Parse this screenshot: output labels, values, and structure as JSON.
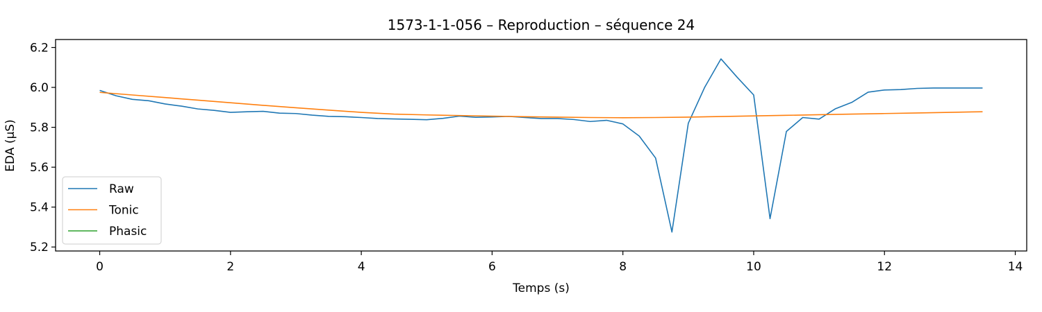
{
  "chart_data": {
    "type": "line",
    "title": "1573-1-1-056 – Reproduction – séquence 24",
    "xlabel": "Temps (s)",
    "ylabel": "EDA (µS)",
    "xlim": [
      -0.675,
      14.175
    ],
    "ylim": [
      5.18,
      6.24
    ],
    "xticks": [
      0,
      2,
      4,
      6,
      8,
      10,
      12,
      14
    ],
    "xtick_labels": [
      "0",
      "2",
      "4",
      "6",
      "8",
      "10",
      "12",
      "14"
    ],
    "yticks": [
      5.2,
      5.4,
      5.6,
      5.8,
      6.0,
      6.2
    ],
    "ytick_labels": [
      "5.2",
      "5.4",
      "5.6",
      "5.8",
      "6.0",
      "6.2"
    ],
    "grid": false,
    "legend_position": "lower-left",
    "series": [
      {
        "name": "Raw",
        "color": "#1f77b4",
        "x": [
          0,
          0.25,
          0.5,
          0.75,
          1.0,
          1.25,
          1.5,
          1.75,
          2.0,
          2.25,
          2.5,
          2.75,
          3.0,
          3.25,
          3.5,
          3.75,
          4.0,
          4.25,
          4.5,
          4.75,
          5.0,
          5.25,
          5.5,
          5.75,
          6.0,
          6.25,
          6.5,
          6.75,
          7.0,
          7.25,
          7.5,
          7.75,
          8.0,
          8.25,
          8.5,
          8.75,
          9.0,
          9.25,
          9.5,
          9.75,
          10.0,
          10.25,
          10.5,
          10.75,
          11.0,
          11.25,
          11.5,
          11.75,
          12.0,
          12.25,
          12.5,
          12.75,
          13.0,
          13.25,
          13.5
        ],
        "y": [
          5.985,
          5.958,
          5.94,
          5.933,
          5.917,
          5.906,
          5.892,
          5.885,
          5.875,
          5.878,
          5.88,
          5.871,
          5.869,
          5.861,
          5.855,
          5.853,
          5.849,
          5.844,
          5.842,
          5.84,
          5.838,
          5.845,
          5.856,
          5.85,
          5.852,
          5.855,
          5.849,
          5.844,
          5.844,
          5.839,
          5.829,
          5.835,
          5.817,
          5.756,
          5.646,
          5.275,
          5.82,
          6.0,
          6.143,
          6.05,
          5.962,
          5.342,
          5.779,
          5.849,
          5.841,
          5.893,
          5.925,
          5.976,
          5.987,
          5.989,
          5.995,
          5.997,
          5.997,
          5.997,
          5.997
        ]
      },
      {
        "name": "Tonic",
        "color": "#ff7f0e",
        "x": [
          0,
          0.5,
          1.0,
          1.5,
          2.0,
          2.5,
          3.0,
          3.5,
          4.0,
          4.5,
          5.0,
          5.5,
          6.0,
          6.5,
          7.0,
          7.5,
          8.0,
          8.5,
          9.0,
          9.5,
          10.0,
          10.5,
          11.0,
          11.5,
          12.0,
          12.5,
          13.0,
          13.5
        ],
        "y": [
          5.975,
          5.962,
          5.949,
          5.936,
          5.923,
          5.91,
          5.898,
          5.886,
          5.875,
          5.866,
          5.862,
          5.859,
          5.856,
          5.853,
          5.851,
          5.849,
          5.848,
          5.849,
          5.851,
          5.854,
          5.857,
          5.86,
          5.863,
          5.866,
          5.869,
          5.872,
          5.875,
          5.878
        ]
      },
      {
        "name": "Phasic",
        "color": "#2ca02c",
        "x": [],
        "y": []
      }
    ]
  }
}
